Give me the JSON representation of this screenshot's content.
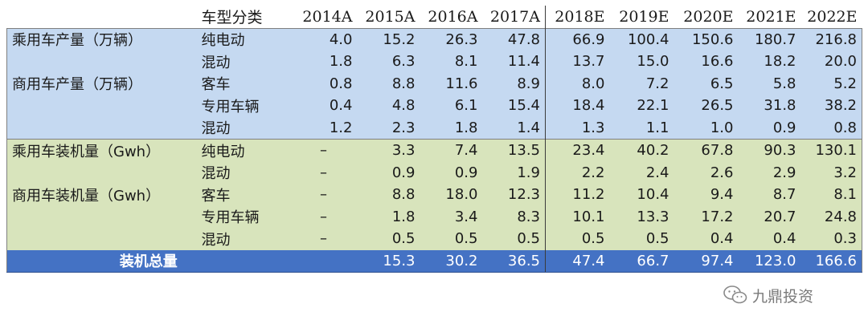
{
  "header": {
    "type_label": "车型分类",
    "years": [
      "2014A",
      "2015A",
      "2016A",
      "2017A",
      "2018E",
      "2019E",
      "2020E",
      "2021E",
      "2022E"
    ]
  },
  "production": {
    "passenger": {
      "label": "乘用车产量（万辆）",
      "rows": [
        {
          "type": "纯电动",
          "values": [
            "4.0",
            "15.2",
            "26.3",
            "47.8",
            "66.9",
            "100.4",
            "150.6",
            "180.7",
            "216.8"
          ]
        },
        {
          "type": "混动",
          "values": [
            "1.8",
            "6.3",
            "8.1",
            "11.4",
            "13.7",
            "15.0",
            "16.6",
            "18.2",
            "20.0"
          ]
        }
      ]
    },
    "commercial": {
      "label": "商用车产量（万辆）",
      "rows": [
        {
          "type": "客车",
          "values": [
            "0.8",
            "8.8",
            "11.6",
            "8.9",
            "8.0",
            "7.2",
            "6.5",
            "5.8",
            "5.2"
          ]
        },
        {
          "type": "专用车辆",
          "values": [
            "0.4",
            "4.8",
            "6.1",
            "15.4",
            "18.4",
            "22.1",
            "26.5",
            "31.8",
            "38.2"
          ]
        },
        {
          "type": "混动",
          "values": [
            "1.2",
            "2.3",
            "1.8",
            "1.4",
            "1.3",
            "1.1",
            "1.0",
            "0.9",
            "0.8"
          ]
        }
      ]
    }
  },
  "installed": {
    "passenger": {
      "label": "乘用车装机量（Gwh）",
      "rows": [
        {
          "type": "纯电动",
          "values": [
            "–",
            "3.3",
            "7.4",
            "13.5",
            "23.4",
            "40.2",
            "67.8",
            "90.3",
            "130.1"
          ]
        },
        {
          "type": "混动",
          "values": [
            "–",
            "0.9",
            "0.9",
            "1.9",
            "2.2",
            "2.4",
            "2.6",
            "2.9",
            "3.2"
          ]
        }
      ]
    },
    "commercial": {
      "label": "商用车装机量（Gwh）",
      "rows": [
        {
          "type": "客车",
          "values": [
            "–",
            "8.8",
            "18.0",
            "12.3",
            "11.2",
            "10.4",
            "9.4",
            "8.7",
            "8.1"
          ]
        },
        {
          "type": "专用车辆",
          "values": [
            "–",
            "1.8",
            "3.4",
            "8.3",
            "10.1",
            "13.3",
            "17.2",
            "20.7",
            "24.8"
          ]
        },
        {
          "type": "混动",
          "values": [
            "–",
            "0.5",
            "0.5",
            "0.5",
            "0.5",
            "0.5",
            "0.4",
            "0.4",
            "0.3"
          ]
        }
      ]
    }
  },
  "total": {
    "label": "装机总量",
    "values": [
      "",
      "15.3",
      "30.2",
      "36.5",
      "47.4",
      "66.7",
      "97.4",
      "123.0",
      "166.6"
    ]
  },
  "watermark": {
    "text": "九鼎投资",
    "icon": "wechat-icon"
  },
  "colors": {
    "production_bg": "#c5d9f1",
    "installed_bg": "#d8e4bc",
    "total_bg": "#4472c4",
    "total_text": "#ffffff"
  }
}
